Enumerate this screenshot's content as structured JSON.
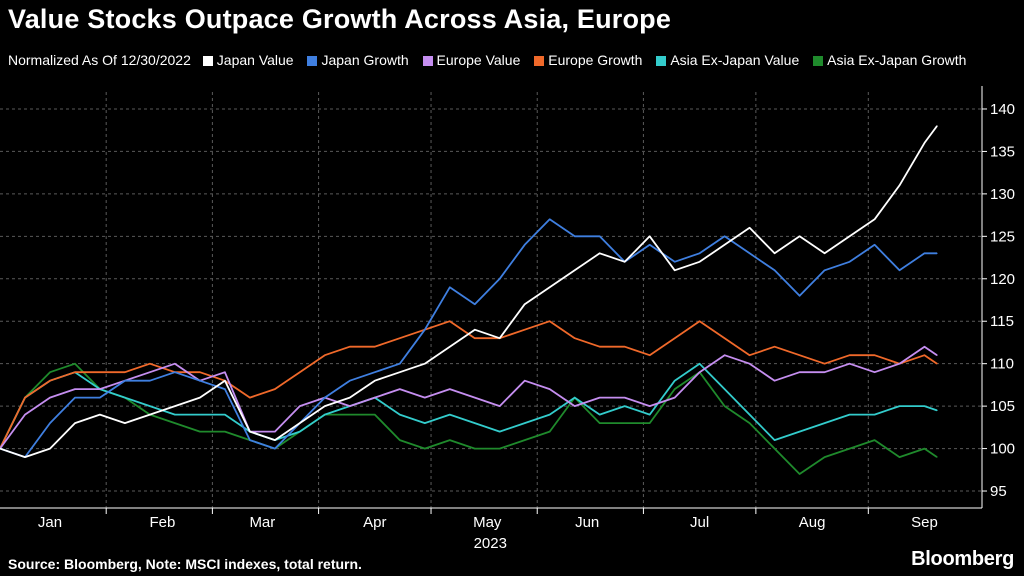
{
  "colors": {
    "background": "#000000",
    "japan_value": "#ffffff",
    "japan_growth": "#3f7fe0",
    "europe_value": "#c58ef0",
    "europe_growth": "#f0692a",
    "asia_exjp_value": "#33cccc",
    "asia_exjp_growth": "#1f8a2c"
  },
  "header": {
    "title": "Value Stocks Outpace Growth Across Asia, Europe",
    "legend_prefix": "Normalized As Of 12/30/2022"
  },
  "legend": [
    {
      "label": "Japan Value",
      "color": "#ffffff"
    },
    {
      "label": "Japan Growth",
      "color": "#3f7fe0"
    },
    {
      "label": "Europe Value",
      "color": "#c58ef0"
    },
    {
      "label": "Europe Growth",
      "color": "#f0692a"
    },
    {
      "label": "Asia Ex-Japan Value",
      "color": "#33cccc"
    },
    {
      "label": "Asia Ex-Japan Growth",
      "color": "#1f8a2c"
    }
  ],
  "footer": {
    "source": "Source: Bloomberg, Note: MSCI indexes, total return.",
    "brand": "Bloomberg"
  },
  "chart_data": {
    "type": "line",
    "title": "Value Stocks Outpace Growth Across Asia, Europe",
    "subtitle": "Normalized As Of 12/30/2022",
    "xlabel": "2023",
    "ylabel": "",
    "ylim": [
      93,
      142
    ],
    "y_ticks": [
      95,
      100,
      105,
      110,
      115,
      120,
      125,
      130,
      135,
      140
    ],
    "x_ticks": [
      {
        "label": "Jan",
        "week": 2
      },
      {
        "label": "Feb",
        "week": 6.5
      },
      {
        "label": "Mar",
        "week": 10.5
      },
      {
        "label": "Apr",
        "week": 15
      },
      {
        "label": "May",
        "week": 19.5
      },
      {
        "label": "Jun",
        "week": 23.5
      },
      {
        "label": "Jul",
        "week": 28
      },
      {
        "label": "Aug",
        "week": 32.5
      },
      {
        "label": "Sep",
        "week": 37
      }
    ],
    "x_year_label": "2023",
    "grid": true,
    "legend_position": "top",
    "x": [
      0,
      1,
      2,
      3,
      4,
      5,
      6,
      7,
      8,
      9,
      10,
      11,
      12,
      13,
      14,
      15,
      16,
      17,
      18,
      19,
      20,
      21,
      22,
      23,
      24,
      25,
      26,
      27,
      28,
      29,
      30,
      31,
      32,
      33,
      34,
      35,
      36,
      37,
      37.5
    ],
    "series": [
      {
        "name": "Japan Value",
        "color": "#ffffff",
        "values": [
          100,
          99,
          100,
          103,
          104,
          103,
          104,
          105,
          106,
          108,
          102,
          101,
          103,
          105,
          106,
          108,
          109,
          110,
          112,
          114,
          113,
          117,
          119,
          121,
          123,
          122,
          125,
          121,
          122,
          124,
          126,
          123,
          125,
          123,
          125,
          127,
          131,
          136,
          138
        ]
      },
      {
        "name": "Japan Growth",
        "color": "#3f7fe0",
        "values": [
          100,
          99,
          103,
          106,
          106,
          108,
          108,
          109,
          108,
          107,
          101,
          100,
          103,
          106,
          108,
          109,
          110,
          114,
          119,
          117,
          120,
          124,
          127,
          125,
          125,
          122,
          124,
          122,
          123,
          125,
          123,
          121,
          118,
          121,
          122,
          124,
          121,
          123,
          123
        ]
      },
      {
        "name": "Europe Value",
        "color": "#c58ef0",
        "values": [
          100,
          104,
          106,
          107,
          107,
          108,
          109,
          110,
          108,
          109,
          102,
          102,
          105,
          106,
          105,
          106,
          107,
          106,
          107,
          106,
          105,
          108,
          107,
          105,
          106,
          106,
          105,
          106,
          109,
          111,
          110,
          108,
          109,
          109,
          110,
          109,
          110,
          112,
          111
        ]
      },
      {
        "name": "Europe Growth",
        "color": "#f0692a",
        "values": [
          100,
          106,
          108,
          109,
          109,
          109,
          110,
          109,
          109,
          108,
          106,
          107,
          109,
          111,
          112,
          112,
          113,
          114,
          115,
          113,
          113,
          114,
          115,
          113,
          112,
          112,
          111,
          113,
          115,
          113,
          111,
          112,
          111,
          110,
          111,
          111,
          110,
          111,
          110
        ]
      },
      {
        "name": "Asia Ex-Japan Value",
        "color": "#33cccc",
        "values": [
          100,
          106,
          108,
          109,
          107,
          106,
          105,
          104,
          104,
          104,
          102,
          101,
          102,
          104,
          105,
          106,
          104,
          103,
          104,
          103,
          102,
          103,
          104,
          106,
          104,
          105,
          104,
          108,
          110,
          107,
          104,
          101,
          102,
          103,
          104,
          104,
          105,
          105,
          104.5
        ]
      },
      {
        "name": "Asia Ex-Japan Growth",
        "color": "#1f8a2c",
        "values": [
          100,
          106,
          109,
          110,
          107,
          106,
          104,
          103,
          102,
          102,
          101,
          100,
          102,
          104,
          104,
          104,
          101,
          100,
          101,
          100,
          100,
          101,
          102,
          106,
          103,
          103,
          103,
          107,
          109,
          105,
          103,
          100,
          97,
          99,
          100,
          101,
          99,
          100,
          99
        ]
      }
    ]
  }
}
